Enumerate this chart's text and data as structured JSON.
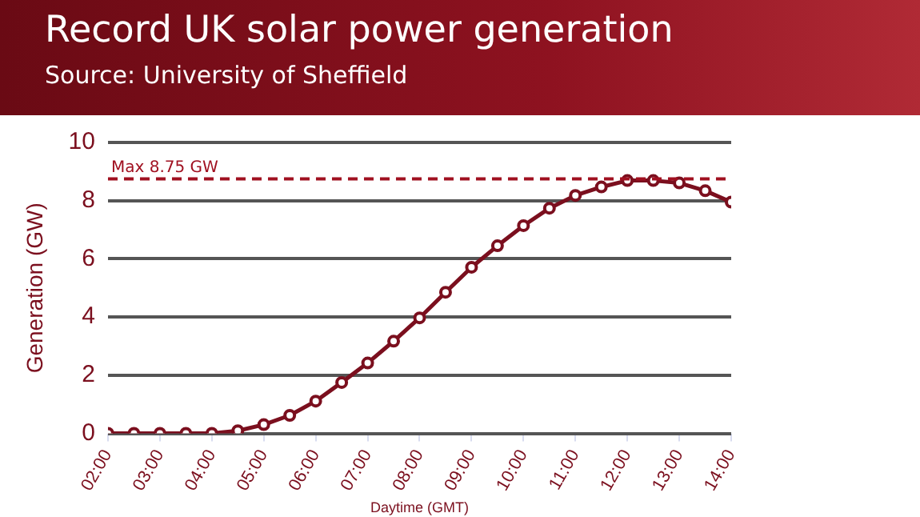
{
  "chart_data": {
    "type": "line",
    "title": "Record UK solar power generation",
    "subtitle": "Source: University of Sheffield",
    "xlabel": "Daytime (GMT)",
    "ylabel": "Generation (GW)",
    "x": [
      2,
      2.5,
      3,
      3.5,
      4,
      4.5,
      5,
      5.5,
      6,
      6.5,
      7,
      7.5,
      8,
      8.5,
      9,
      9.5,
      10,
      10.5,
      11,
      11.5,
      12,
      12.5,
      13,
      13.5,
      14
    ],
    "series": [
      {
        "color": "#7b0f1e",
        "values": [
          0,
          0,
          0,
          0,
          0,
          0.09,
          0.3,
          0.62,
          1.11,
          1.75,
          2.42,
          3.17,
          3.97,
          4.85,
          5.71,
          6.45,
          7.14,
          7.74,
          8.18,
          8.47,
          8.69,
          8.69,
          8.61,
          8.34,
          7.95
        ]
      }
    ],
    "xlim": [
      2,
      14
    ],
    "xticks": [
      {
        "value": 2,
        "label": "02:00"
      },
      {
        "value": 3,
        "label": "03:00"
      },
      {
        "value": 4,
        "label": "04:00"
      },
      {
        "value": 5,
        "label": "05:00"
      },
      {
        "value": 6,
        "label": "06:00"
      },
      {
        "value": 7,
        "label": "07:00"
      },
      {
        "value": 8,
        "label": "08:00"
      },
      {
        "value": 9,
        "label": "09:00"
      },
      {
        "value": 10,
        "label": "10:00"
      },
      {
        "value": 11,
        "label": "11:00"
      },
      {
        "value": 12,
        "label": "12:00"
      },
      {
        "value": 13,
        "label": "13:00"
      },
      {
        "value": 14,
        "label": "14:00"
      }
    ],
    "ylim": [
      0,
      10
    ],
    "yticks": [
      0,
      2,
      4,
      6,
      8,
      10
    ],
    "ref_lines": [
      {
        "axis": "y",
        "value": 8.75,
        "label": "Max 8.75 GW",
        "color": "#a01020",
        "line_style": "dashed"
      }
    ],
    "grid": "y",
    "legend": false,
    "marker": "circle",
    "line_style": "solid"
  }
}
